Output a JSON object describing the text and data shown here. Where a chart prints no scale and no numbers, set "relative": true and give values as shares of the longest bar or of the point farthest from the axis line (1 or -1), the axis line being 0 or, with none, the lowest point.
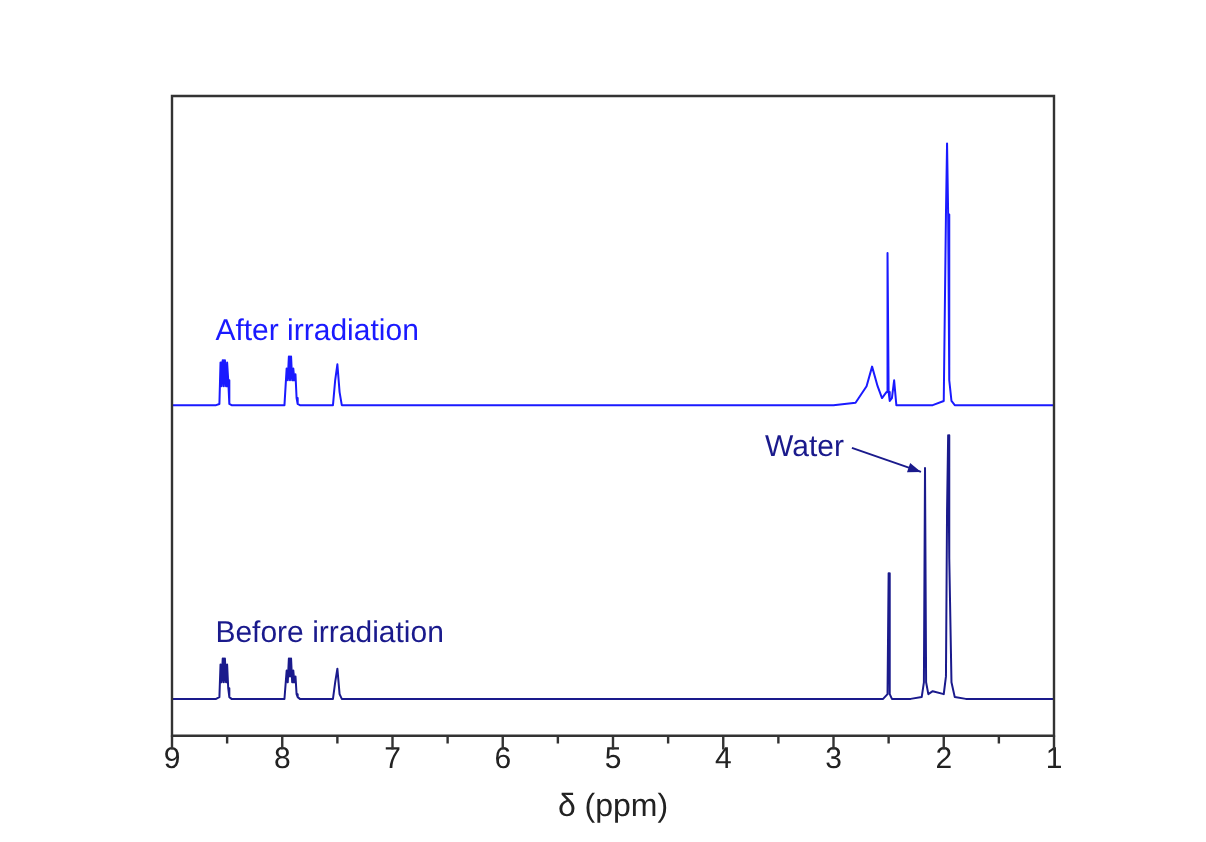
{
  "chart_data": {
    "type": "line",
    "xlabel": "δ (ppm)",
    "xlim": [
      9,
      1
    ],
    "xticks": [
      9,
      {
        "value": 8.5,
        "label": null
      },
      8,
      {
        "value": 7.5,
        "label": null
      },
      7,
      {
        "value": 6.5,
        "label": null
      },
      6,
      {
        "value": 5.5,
        "label": null
      },
      5,
      {
        "value": 4.5,
        "label": null
      },
      4,
      {
        "value": 3.5,
        "label": null
      },
      3,
      {
        "value": 2.5,
        "label": null
      },
      2,
      {
        "value": 1.5,
        "label": null
      },
      1
    ],
    "relative": true,
    "grid": false,
    "legend": false,
    "marker": "none",
    "line_style": "solid",
    "annotations": [
      {
        "text": "Water",
        "x": 2.17,
        "y": 0.452
      }
    ],
    "series": [
      {
        "name": "After irradiation",
        "color": "#1a1aff",
        "x": [
          9,
          8.6,
          8.57,
          8.56,
          8.55,
          8.54,
          8.53,
          8.52,
          8.51,
          8.5,
          8.49,
          8.48,
          8.46,
          8.3,
          7.98,
          7.96,
          7.95,
          7.94,
          7.93,
          7.92,
          7.91,
          7.9,
          7.89,
          7.88,
          7.87,
          7.86,
          7.84,
          7.54,
          7.52,
          7.5,
          7.48,
          7.46,
          6,
          4,
          3,
          2.8,
          2.7,
          2.65,
          2.6,
          2.56,
          2.52,
          2.51,
          2.5,
          2.49,
          2.47,
          2.45,
          2.43,
          2.1,
          2.0,
          1.98,
          1.97,
          1.96,
          1.95,
          1.93,
          1.9,
          1
        ],
        "values": [
          0.558,
          0.558,
          0.56,
          0.63,
          0.59,
          0.634,
          0.59,
          0.634,
          0.59,
          0.63,
          0.6,
          0.56,
          0.558,
          0.558,
          0.558,
          0.62,
          0.6,
          0.64,
          0.6,
          0.64,
          0.6,
          0.62,
          0.6,
          0.61,
          0.57,
          0.56,
          0.558,
          0.558,
          0.6,
          0.627,
          0.58,
          0.558,
          0.558,
          0.558,
          0.558,
          0.562,
          0.59,
          0.623,
          0.59,
          0.57,
          0.58,
          0.815,
          0.58,
          0.565,
          0.57,
          0.6,
          0.558,
          0.558,
          0.565,
          0.88,
          1.0,
          0.88,
          0.6,
          0.565,
          0.558,
          0.558
        ]
      },
      {
        "name": "Before irradiation",
        "color": "#1a1a8c",
        "x": [
          9,
          8.6,
          8.57,
          8.56,
          8.55,
          8.54,
          8.53,
          8.52,
          8.51,
          8.5,
          8.49,
          8.48,
          8.46,
          8.3,
          7.98,
          7.96,
          7.95,
          7.94,
          7.93,
          7.92,
          7.91,
          7.9,
          7.89,
          7.88,
          7.87,
          7.86,
          7.84,
          7.54,
          7.52,
          7.5,
          7.48,
          7.46,
          6,
          4,
          3,
          2.55,
          2.51,
          2.5,
          2.49,
          2.47,
          2.3,
          2.2,
          2.18,
          2.17,
          2.16,
          2.14,
          2.1,
          2.0,
          1.98,
          1.97,
          1.96,
          1.95,
          1.93,
          1.9,
          1.8,
          1
        ],
        "values": [
          0.062,
          0.062,
          0.065,
          0.12,
          0.09,
          0.13,
          0.09,
          0.13,
          0.09,
          0.12,
          0.08,
          0.065,
          0.062,
          0.062,
          0.062,
          0.11,
          0.09,
          0.13,
          0.1,
          0.13,
          0.09,
          0.11,
          0.09,
          0.1,
          0.07,
          0.065,
          0.062,
          0.062,
          0.09,
          0.113,
          0.07,
          0.062,
          0.062,
          0.062,
          0.062,
          0.062,
          0.07,
          0.274,
          0.07,
          0.062,
          0.062,
          0.065,
          0.09,
          0.452,
          0.09,
          0.07,
          0.075,
          0.07,
          0.1,
          0.38,
          0.507,
          0.3,
          0.09,
          0.065,
          0.062,
          0.062
        ]
      }
    ]
  }
}
